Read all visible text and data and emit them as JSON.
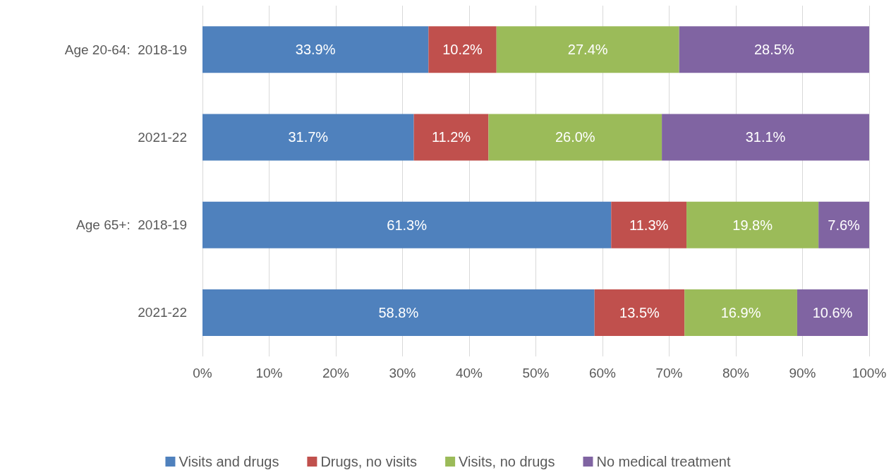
{
  "chart_data": {
    "type": "bar",
    "orientation": "horizontal",
    "stacked": true,
    "categories": [
      "Age 20-64:  2018-19",
      "2021-22",
      "Age 65+:  2018-19",
      "2021-22"
    ],
    "series": [
      {
        "name": "Visits and drugs",
        "color": "#4f81bd",
        "values": [
          33.9,
          31.7,
          61.3,
          58.8
        ],
        "value_labels": [
          "33.9%",
          "31.7%",
          "61.3%",
          "58.8%"
        ]
      },
      {
        "name": "Drugs, no visits",
        "color": "#c0504d",
        "values": [
          10.2,
          11.2,
          11.3,
          13.5
        ],
        "value_labels": [
          "10.2%",
          "11.2%",
          "11.3%",
          "13.5%"
        ]
      },
      {
        "name": "Visits, no drugs",
        "color": "#9bbb59",
        "values": [
          27.4,
          26.0,
          19.8,
          16.9
        ],
        "value_labels": [
          "27.4%",
          "26.0%",
          "19.8%",
          "16.9%"
        ]
      },
      {
        "name": "No medical treatment",
        "color": "#8064a2",
        "values": [
          28.5,
          31.1,
          7.6,
          10.6
        ],
        "value_labels": [
          "28.5%",
          "31.1%",
          "7.6%",
          "10.6%"
        ]
      }
    ],
    "xlim": [
      0,
      100
    ],
    "xticks": [
      {
        "value": 0,
        "label": "0%"
      },
      {
        "value": 10,
        "label": "10%"
      },
      {
        "value": 20,
        "label": "20%"
      },
      {
        "value": 30,
        "label": "30%"
      },
      {
        "value": 40,
        "label": "40%"
      },
      {
        "value": 50,
        "label": "50%"
      },
      {
        "value": 60,
        "label": "60%"
      },
      {
        "value": 70,
        "label": "70%"
      },
      {
        "value": 80,
        "label": "80%"
      },
      {
        "value": 90,
        "label": "90%"
      },
      {
        "value": 100,
        "label": "100%"
      }
    ],
    "grid": "x",
    "legend": "bottom"
  }
}
